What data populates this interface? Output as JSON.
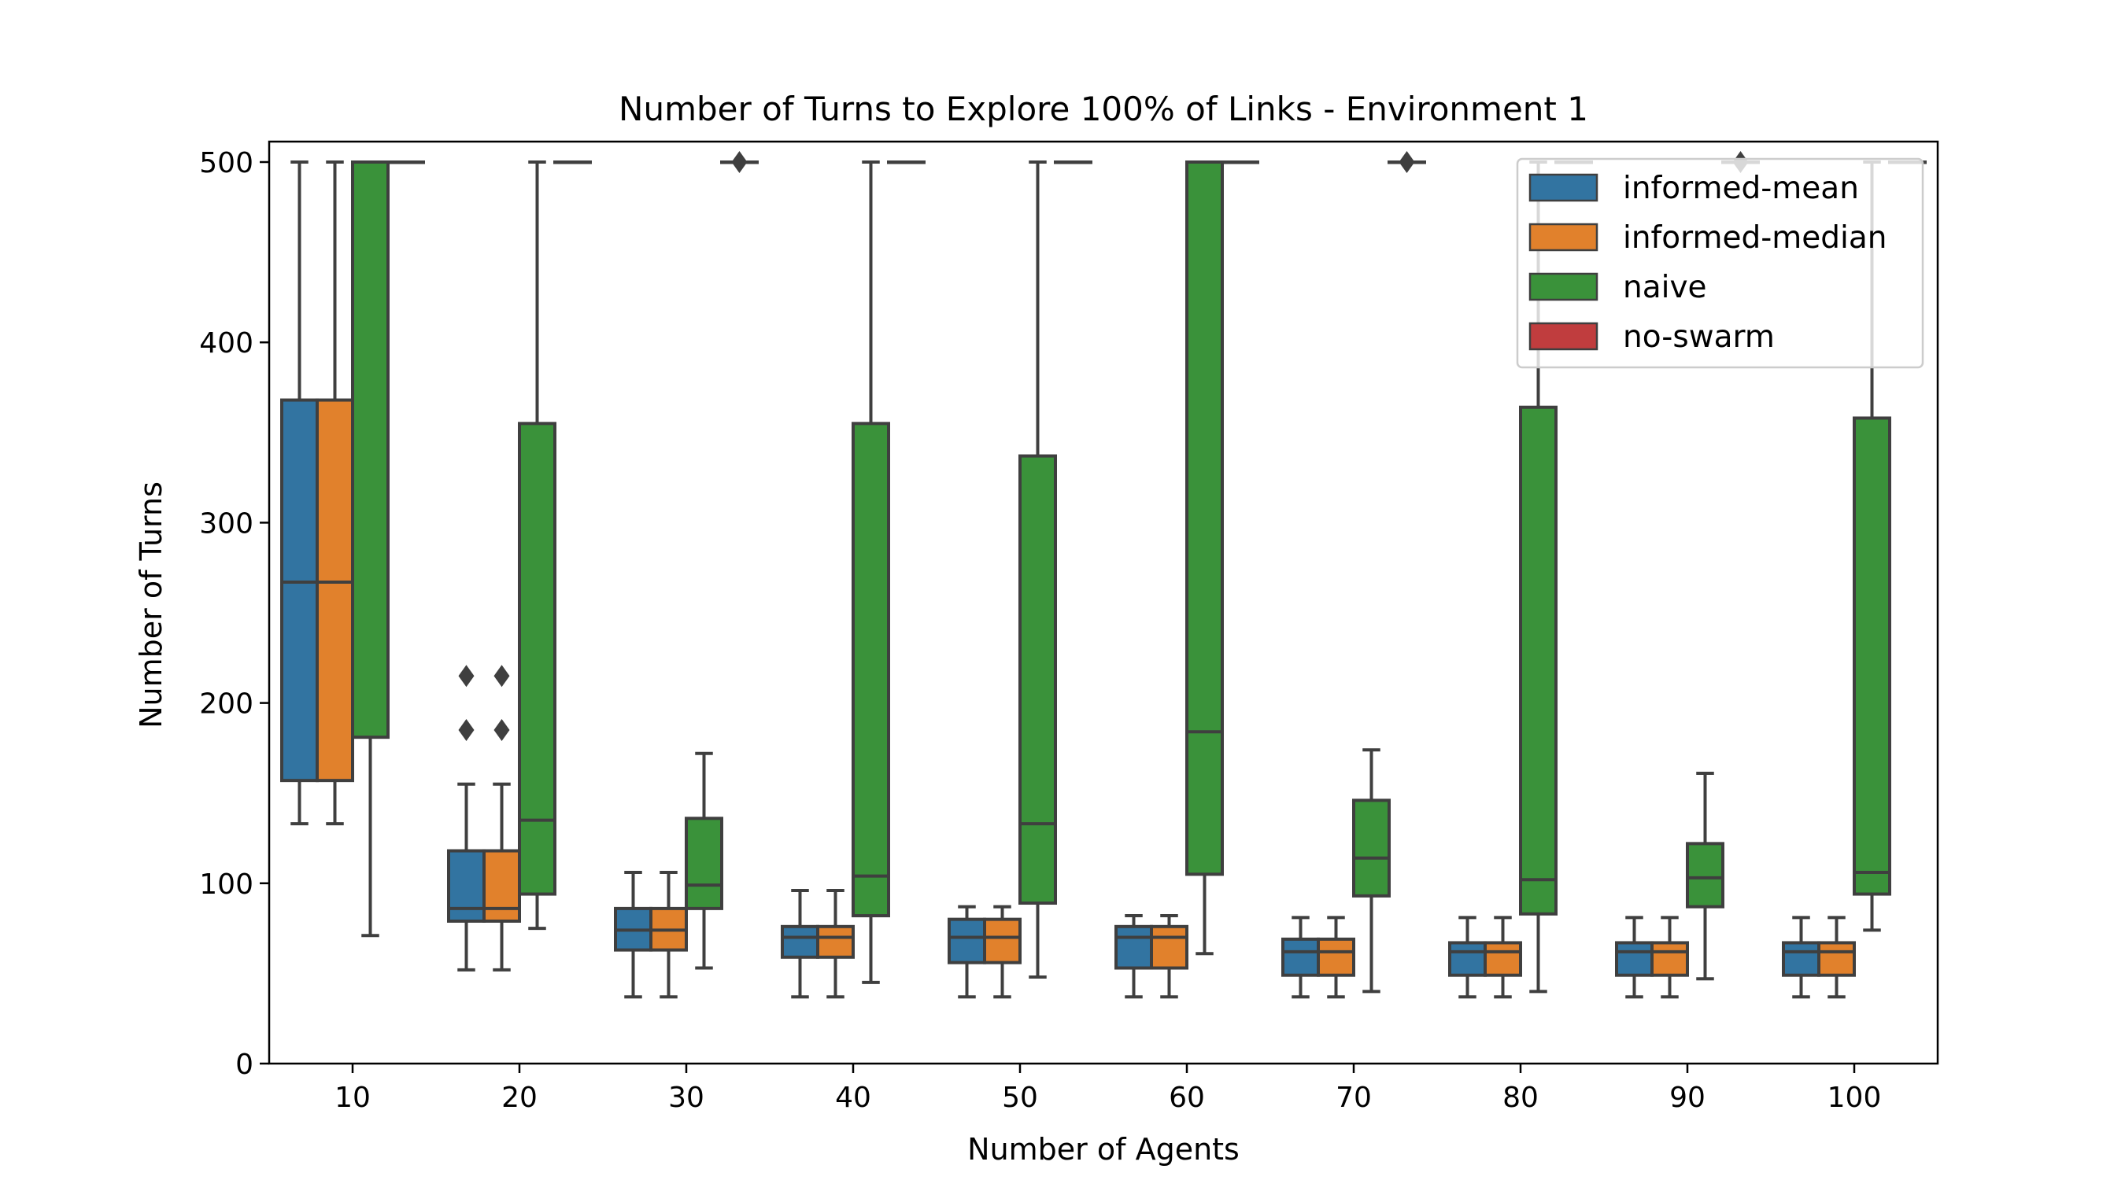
{
  "chart_data": {
    "type": "box",
    "title": "Number of Turns to Explore 100% of Links - Environment 1",
    "xlabel": "Number of Agents",
    "ylabel": "Number of Turns",
    "categories": [
      "10",
      "20",
      "30",
      "40",
      "50",
      "60",
      "70",
      "80",
      "90",
      "100"
    ],
    "ylim": [
      0,
      510
    ],
    "yticks": [
      0,
      100,
      200,
      300,
      400,
      500
    ],
    "legend_position": "top-right",
    "legend": [
      "informed-mean",
      "informed-median",
      "naive",
      "no-swarm"
    ],
    "series": [
      {
        "name": "informed-mean",
        "color": "#3274a1",
        "boxes": [
          {
            "whislo": 133,
            "q1": 157,
            "med": 267,
            "q3": 368,
            "whishi": 500,
            "fliers": []
          },
          {
            "whislo": 52,
            "q1": 79,
            "med": 86,
            "q3": 118,
            "whishi": 155,
            "fliers": [
              185,
              215
            ]
          },
          {
            "whislo": 37,
            "q1": 63,
            "med": 74,
            "q3": 86,
            "whishi": 106,
            "fliers": []
          },
          {
            "whislo": 37,
            "q1": 59,
            "med": 70,
            "q3": 76,
            "whishi": 96,
            "fliers": []
          },
          {
            "whislo": 37,
            "q1": 56,
            "med": 70,
            "q3": 80,
            "whishi": 87,
            "fliers": []
          },
          {
            "whislo": 37,
            "q1": 53,
            "med": 70,
            "q3": 76,
            "whishi": 82,
            "fliers": []
          },
          {
            "whislo": 37,
            "q1": 49,
            "med": 62,
            "q3": 69,
            "whishi": 81,
            "fliers": []
          },
          {
            "whislo": 37,
            "q1": 49,
            "med": 62,
            "q3": 67,
            "whishi": 81,
            "fliers": []
          },
          {
            "whislo": 37,
            "q1": 49,
            "med": 62,
            "q3": 67,
            "whishi": 81,
            "fliers": []
          },
          {
            "whislo": 37,
            "q1": 49,
            "med": 62,
            "q3": 67,
            "whishi": 81,
            "fliers": []
          }
        ]
      },
      {
        "name": "informed-median",
        "color": "#e1812c",
        "boxes": [
          {
            "whislo": 133,
            "q1": 157,
            "med": 267,
            "q3": 368,
            "whishi": 500,
            "fliers": []
          },
          {
            "whislo": 52,
            "q1": 79,
            "med": 86,
            "q3": 118,
            "whishi": 155,
            "fliers": [
              185,
              215
            ]
          },
          {
            "whislo": 37,
            "q1": 63,
            "med": 74,
            "q3": 86,
            "whishi": 106,
            "fliers": []
          },
          {
            "whislo": 37,
            "q1": 59,
            "med": 70,
            "q3": 76,
            "whishi": 96,
            "fliers": []
          },
          {
            "whislo": 37,
            "q1": 56,
            "med": 70,
            "q3": 80,
            "whishi": 87,
            "fliers": []
          },
          {
            "whislo": 37,
            "q1": 53,
            "med": 70,
            "q3": 76,
            "whishi": 82,
            "fliers": []
          },
          {
            "whislo": 37,
            "q1": 49,
            "med": 62,
            "q3": 69,
            "whishi": 81,
            "fliers": []
          },
          {
            "whislo": 37,
            "q1": 49,
            "med": 62,
            "q3": 67,
            "whishi": 81,
            "fliers": []
          },
          {
            "whislo": 37,
            "q1": 49,
            "med": 62,
            "q3": 67,
            "whishi": 81,
            "fliers": []
          },
          {
            "whislo": 37,
            "q1": 49,
            "med": 62,
            "q3": 67,
            "whishi": 81,
            "fliers": []
          }
        ]
      },
      {
        "name": "naive",
        "color": "#3a923a",
        "boxes": [
          {
            "whislo": 71,
            "q1": 181,
            "med": 500,
            "q3": 500,
            "whishi": 500,
            "fliers": []
          },
          {
            "whislo": 75,
            "q1": 94,
            "med": 135,
            "q3": 355,
            "whishi": 500,
            "fliers": []
          },
          {
            "whislo": 53,
            "q1": 86,
            "med": 99,
            "q3": 136,
            "whishi": 172,
            "fliers": []
          },
          {
            "whislo": 45,
            "q1": 82,
            "med": 104,
            "q3": 355,
            "whishi": 500,
            "fliers": []
          },
          {
            "whislo": 48,
            "q1": 89,
            "med": 133,
            "q3": 337,
            "whishi": 500,
            "fliers": []
          },
          {
            "whislo": 61,
            "q1": 105,
            "med": 184,
            "q3": 500,
            "whishi": 500,
            "fliers": []
          },
          {
            "whislo": 40,
            "q1": 93,
            "med": 114,
            "q3": 146,
            "whishi": 174,
            "fliers": []
          },
          {
            "whislo": 40,
            "q1": 83,
            "med": 102,
            "q3": 364,
            "whishi": 500,
            "fliers": []
          },
          {
            "whislo": 47,
            "q1": 87,
            "med": 103,
            "q3": 122,
            "whishi": 161,
            "fliers": []
          },
          {
            "whislo": 74,
            "q1": 94,
            "med": 106,
            "q3": 358,
            "whishi": 500,
            "fliers": []
          }
        ]
      },
      {
        "name": "no-swarm",
        "color": "#c03d3e",
        "boxes": [
          {
            "whislo": 500,
            "q1": 500,
            "med": 500,
            "q3": 500,
            "whishi": 500,
            "fliers": []
          },
          {
            "whislo": 500,
            "q1": 500,
            "med": 500,
            "q3": 500,
            "whishi": 500,
            "fliers": []
          },
          {
            "whislo": 500,
            "q1": 500,
            "med": 500,
            "q3": 500,
            "whishi": 500,
            "fliers": [
              500
            ]
          },
          {
            "whislo": 500,
            "q1": 500,
            "med": 500,
            "q3": 500,
            "whishi": 500,
            "fliers": []
          },
          {
            "whislo": 500,
            "q1": 500,
            "med": 500,
            "q3": 500,
            "whishi": 500,
            "fliers": []
          },
          {
            "whislo": 500,
            "q1": 500,
            "med": 500,
            "q3": 500,
            "whishi": 500,
            "fliers": []
          },
          {
            "whislo": 500,
            "q1": 500,
            "med": 500,
            "q3": 500,
            "whishi": 500,
            "fliers": [
              500
            ]
          },
          {
            "whislo": 500,
            "q1": 500,
            "med": 500,
            "q3": 500,
            "whishi": 500,
            "fliers": []
          },
          {
            "whislo": 500,
            "q1": 500,
            "med": 500,
            "q3": 500,
            "whishi": 500,
            "fliers": [
              500
            ]
          },
          {
            "whislo": 500,
            "q1": 500,
            "med": 500,
            "q3": 500,
            "whishi": 500,
            "fliers": []
          }
        ]
      }
    ],
    "grid": false
  }
}
